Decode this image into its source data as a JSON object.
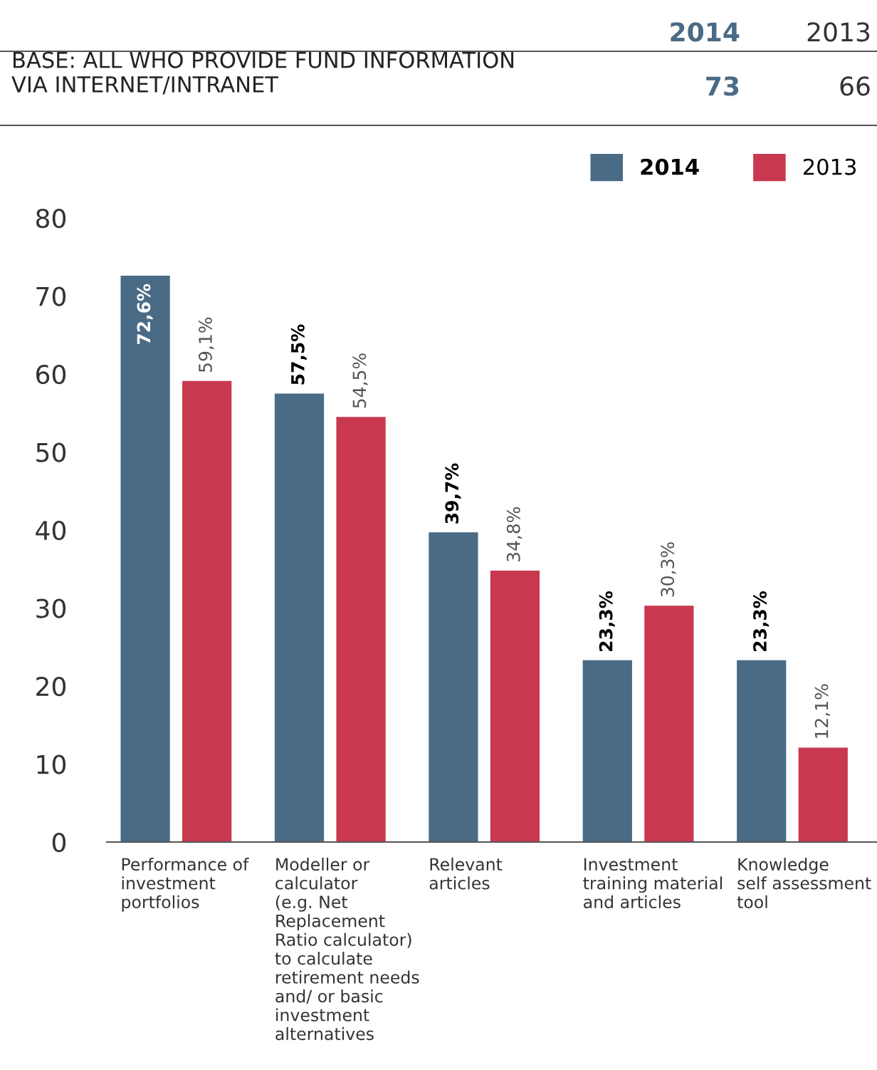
{
  "chart_data": {
    "type": "bar",
    "categories": [
      "Performance of\ninvestment\nportfolios",
      "Modeller or\ncalculator\n(e.g. Net\nReplacement\nRatio calculator)\nto calculate\nretirement needs\nand/ or basic\ninvestment\nalternatives",
      "Relevant\narticles",
      "Investment\ntraining material\nand articles",
      "Knowledge\nself assessment\ntool"
    ],
    "series": [
      {
        "name": "2014",
        "color": "#4a6b86",
        "values": [
          72.6,
          57.5,
          39.7,
          23.3,
          23.3
        ],
        "value_labels": [
          "72,6%",
          "57,5%",
          "39,7%",
          "23,3%",
          "23,3%"
        ]
      },
      {
        "name": "2013",
        "color": "#c8384f",
        "values": [
          59.1,
          54.5,
          34.8,
          30.3,
          12.1
        ],
        "value_labels": [
          "59,1%",
          "54,5%",
          "34,8%",
          "30,3%",
          "12,1%"
        ]
      }
    ],
    "ylim": [
      0,
      80
    ],
    "yticks": [
      0,
      10,
      20,
      30,
      40,
      50,
      60,
      70,
      80
    ],
    "grid": false,
    "legend": "top right",
    "annotations": [
      "2014",
      "2013",
      "BASE: ALL WHO PROVIDE FUND INFORMATION\nVIA INTERNET/INTRANET",
      "73",
      "66"
    ]
  }
}
